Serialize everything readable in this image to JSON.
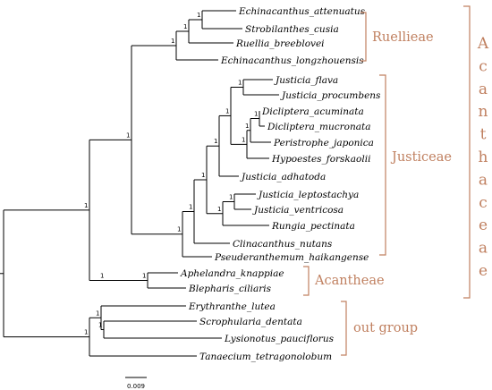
{
  "taxa": [
    "Echinacanthus_attenuatus",
    "Strobilanthes_cusia",
    "Ruellia_breeblovei",
    "Echinacanthus_longzhouensis",
    "Justicia_flava",
    "Justicia_procumbens",
    "Dicliptera_acuminata",
    "Dicliptera_mucronata",
    "Peristrophe_japonica",
    "Hypoestes_forskaolii",
    "Justicia_adhatoda",
    "Justicia_leptostachya",
    "Justicia_ventricosa",
    "Rungia_pectinata",
    "Clinacanthus_nutans",
    "Pseuderanthemum_haikangense",
    "Aphelandra_knappiae",
    "Blepharis_ciliaris",
    "Erythranthe_lutea",
    "Scrophularia_dentata",
    "Lysionotus_pauciflorus",
    "Tanaecium_tetragonolobum"
  ],
  "support_value": "1",
  "groups": [
    {
      "label": "Ruellieae"
    },
    {
      "label": "Justiceae"
    },
    {
      "label": "Acantheae"
    },
    {
      "label": "out group"
    }
  ],
  "family_letters": [
    "A",
    "c",
    "a",
    "n",
    "t",
    "h",
    "a",
    "c",
    "e",
    "a",
    "e"
  ],
  "scale_bar": {
    "label": "0.009"
  },
  "colors": {
    "branch": "#000000",
    "label_accent": "#c08060"
  }
}
